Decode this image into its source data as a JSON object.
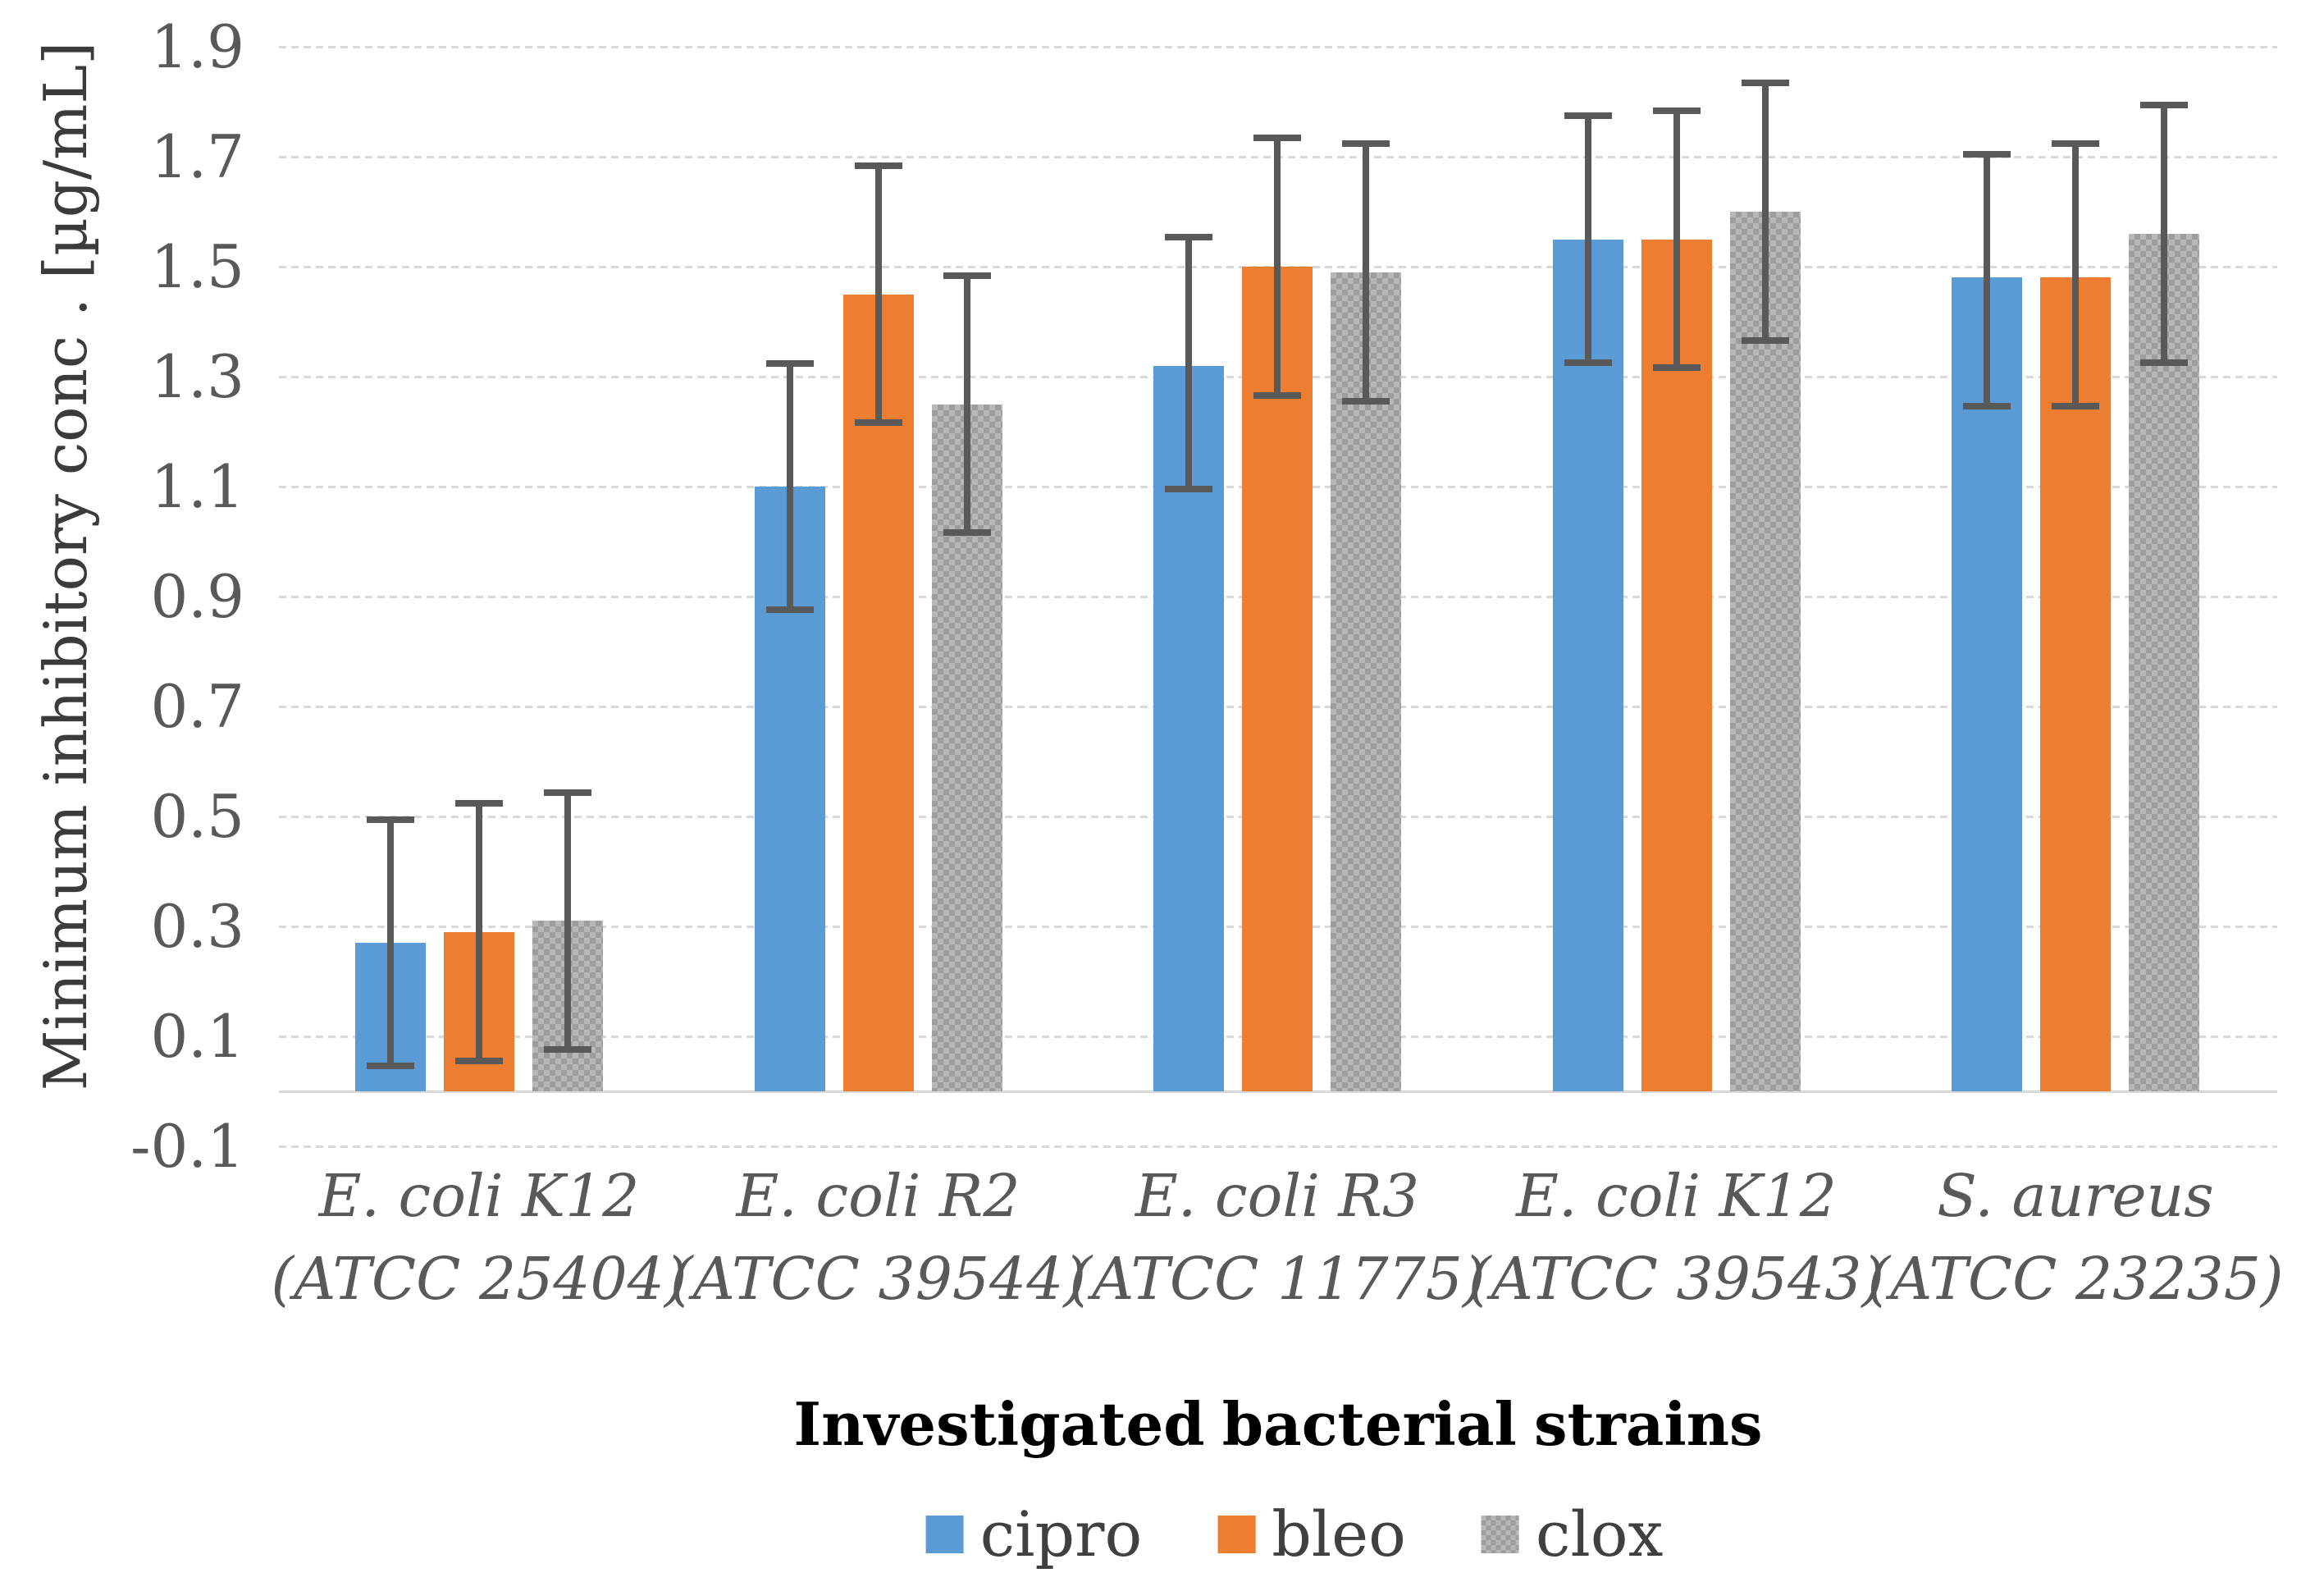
{
  "figure": {
    "y_axis": {
      "title": "Minimum inhibitory conc . [µg/mL]",
      "tick_labels": [
        "1.9",
        "1.7",
        "1.5",
        "1.3",
        "1.1",
        "0.9",
        "0.7",
        "0.5",
        "0.3",
        "0.1",
        "-0.1"
      ],
      "tick_values": [
        1.9,
        1.7,
        1.5,
        1.3,
        1.1,
        0.9,
        0.7,
        0.5,
        0.3,
        0.1,
        -0.1
      ]
    },
    "x_axis": {
      "title": "Investigated bacterial strains"
    },
    "legend": [
      {
        "label": "cipro",
        "color": "#5B9BD5",
        "fill": "solid"
      },
      {
        "label": "bleo",
        "color": "#ED7D31",
        "fill": "solid"
      },
      {
        "label": "clox",
        "color": "#A6A6A6",
        "fill": "checker"
      }
    ]
  },
  "chart_data": {
    "type": "bar",
    "title": "",
    "xlabel": "Investigated bacterial strains",
    "ylabel": "Minimum inhibitory conc . [µg/mL]",
    "ylim": [
      -0.1,
      1.9
    ],
    "ytick_step": 0.2,
    "grid": "horizontal dotted gridlines at every tick",
    "legend_position": "bottom",
    "error_bar_color": "#595959",
    "gridline_color": "#D9D9D9",
    "categories": [
      "E. coli K12 (ATCC 25404)",
      "E. coli R2 (ATCC 39544)",
      "E. coli R3 (ATCC 11775)",
      "E. coli K12 (ATCC 39543)",
      "S. aureus (ATCC 23235)"
    ],
    "categories_two_line": [
      [
        "E. coli K12",
        "(ATCC 25404)"
      ],
      [
        "E. coli R2",
        "(ATCC 39544)"
      ],
      [
        "E. coli R3",
        "(ATCC 11775)"
      ],
      [
        "E. coli K12",
        "(ATCC 39543)"
      ],
      [
        "S. aureus",
        "(ATCC 23235)"
      ]
    ],
    "series": [
      {
        "name": "cipro",
        "color": "#5B9BD5",
        "fill": "solid",
        "values": [
          0.27,
          1.1,
          1.32,
          1.55,
          1.48
        ],
        "error_low": [
          0.04,
          0.87,
          1.09,
          1.32,
          1.24
        ],
        "error_high": [
          0.5,
          1.33,
          1.56,
          1.78,
          1.71
        ]
      },
      {
        "name": "bleo",
        "color": "#ED7D31",
        "fill": "solid",
        "values": [
          0.29,
          1.45,
          1.5,
          1.55,
          1.48
        ],
        "error_low": [
          0.05,
          1.21,
          1.26,
          1.31,
          1.24
        ],
        "error_high": [
          0.53,
          1.69,
          1.74,
          1.79,
          1.73
        ]
      },
      {
        "name": "clox",
        "color": "#A6A6A6",
        "fill": "checker",
        "values": [
          0.31,
          1.25,
          1.49,
          1.6,
          1.56
        ],
        "error_low": [
          0.07,
          1.01,
          1.25,
          1.36,
          1.32
        ],
        "error_high": [
          0.55,
          1.49,
          1.73,
          1.84,
          1.8
        ]
      }
    ]
  }
}
